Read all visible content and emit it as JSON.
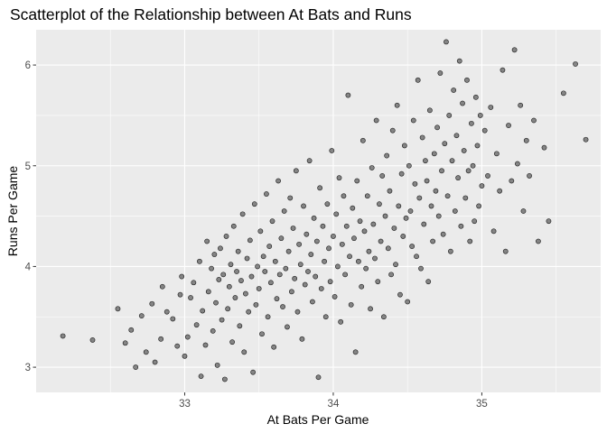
{
  "chart_data": {
    "type": "scatter",
    "title": "Scatterplot of the Relationship between At Bats and Runs",
    "xlabel": "At Bats Per Game",
    "ylabel": "Runs Per Game",
    "xlim": [
      32.0,
      35.8
    ],
    "ylim": [
      2.75,
      6.35
    ],
    "x_ticks": [
      33,
      34,
      35
    ],
    "y_ticks": [
      3,
      4,
      5,
      6
    ],
    "x_tick_labels": [
      "33",
      "34",
      "35"
    ],
    "y_tick_labels": [
      "3",
      "4",
      "5",
      "6"
    ],
    "grid": true,
    "background": "#ebebeb",
    "point_color": "#595959",
    "point_stroke": "#000000",
    "point_alpha": 0.7,
    "points": [
      [
        32.18,
        3.31
      ],
      [
        32.38,
        3.27
      ],
      [
        32.55,
        3.58
      ],
      [
        32.6,
        3.24
      ],
      [
        32.64,
        3.37
      ],
      [
        32.67,
        3.0
      ],
      [
        32.71,
        3.51
      ],
      [
        32.74,
        3.15
      ],
      [
        32.78,
        3.63
      ],
      [
        32.8,
        3.05
      ],
      [
        32.84,
        3.28
      ],
      [
        32.85,
        3.8
      ],
      [
        32.88,
        3.55
      ],
      [
        32.92,
        3.48
      ],
      [
        32.95,
        3.21
      ],
      [
        32.97,
        3.72
      ],
      [
        32.98,
        3.9
      ],
      [
        33.0,
        3.11
      ],
      [
        33.02,
        3.3
      ],
      [
        33.04,
        3.69
      ],
      [
        33.06,
        3.84
      ],
      [
        33.08,
        3.42
      ],
      [
        33.1,
        4.05
      ],
      [
        33.11,
        2.91
      ],
      [
        33.12,
        3.56
      ],
      [
        33.14,
        3.22
      ],
      [
        33.15,
        4.25
      ],
      [
        33.16,
        3.75
      ],
      [
        33.18,
        3.98
      ],
      [
        33.19,
        3.36
      ],
      [
        33.2,
        4.12
      ],
      [
        33.21,
        3.64
      ],
      [
        33.22,
        3.02
      ],
      [
        33.23,
        3.87
      ],
      [
        33.24,
        4.18
      ],
      [
        33.25,
        3.47
      ],
      [
        33.26,
        3.92
      ],
      [
        33.27,
        2.88
      ],
      [
        33.28,
        4.3
      ],
      [
        33.29,
        3.58
      ],
      [
        33.3,
        3.8
      ],
      [
        33.31,
        4.02
      ],
      [
        33.32,
        3.25
      ],
      [
        33.33,
        4.4
      ],
      [
        33.34,
        3.69
      ],
      [
        33.35,
        3.95
      ],
      [
        33.36,
        4.15
      ],
      [
        33.37,
        3.41
      ],
      [
        33.38,
        3.86
      ],
      [
        33.39,
        4.52
      ],
      [
        33.4,
        3.15
      ],
      [
        33.41,
        3.73
      ],
      [
        33.42,
        4.08
      ],
      [
        33.43,
        3.55
      ],
      [
        33.44,
        4.26
      ],
      [
        33.45,
        3.9
      ],
      [
        33.46,
        2.95
      ],
      [
        33.47,
        4.62
      ],
      [
        33.48,
        3.62
      ],
      [
        33.49,
        4.0
      ],
      [
        33.5,
        3.78
      ],
      [
        33.51,
        4.35
      ],
      [
        33.52,
        3.33
      ],
      [
        33.53,
        4.1
      ],
      [
        33.54,
        3.95
      ],
      [
        33.55,
        4.72
      ],
      [
        33.56,
        3.5
      ],
      [
        33.57,
        4.2
      ],
      [
        33.58,
        3.84
      ],
      [
        33.59,
        4.45
      ],
      [
        33.6,
        3.2
      ],
      [
        33.61,
        4.05
      ],
      [
        33.62,
        3.68
      ],
      [
        33.63,
        4.85
      ],
      [
        33.64,
        3.92
      ],
      [
        33.65,
        4.28
      ],
      [
        33.66,
        3.6
      ],
      [
        33.67,
        4.55
      ],
      [
        33.68,
        3.98
      ],
      [
        33.69,
        3.4
      ],
      [
        33.7,
        4.15
      ],
      [
        33.71,
        4.68
      ],
      [
        33.72,
        3.75
      ],
      [
        33.73,
        4.38
      ],
      [
        33.74,
        3.88
      ],
      [
        33.75,
        4.95
      ],
      [
        33.76,
        3.55
      ],
      [
        33.77,
        4.22
      ],
      [
        33.78,
        4.02
      ],
      [
        33.79,
        3.28
      ],
      [
        33.8,
        4.6
      ],
      [
        33.81,
        3.82
      ],
      [
        33.82,
        4.32
      ],
      [
        33.83,
        3.95
      ],
      [
        33.84,
        5.05
      ],
      [
        33.85,
        4.12
      ],
      [
        33.86,
        3.65
      ],
      [
        33.87,
        4.48
      ],
      [
        33.88,
        3.9
      ],
      [
        33.89,
        4.25
      ],
      [
        33.9,
        2.9
      ],
      [
        33.91,
        4.78
      ],
      [
        33.92,
        3.78
      ],
      [
        33.93,
        4.4
      ],
      [
        33.94,
        4.05
      ],
      [
        33.95,
        3.5
      ],
      [
        33.96,
        4.62
      ],
      [
        33.97,
        4.18
      ],
      [
        33.98,
        3.85
      ],
      [
        33.99,
        5.15
      ],
      [
        34.0,
        4.3
      ],
      [
        34.01,
        3.7
      ],
      [
        34.02,
        4.52
      ],
      [
        34.03,
        4.0
      ],
      [
        34.04,
        4.88
      ],
      [
        34.05,
        3.45
      ],
      [
        34.06,
        4.22
      ],
      [
        34.07,
        4.7
      ],
      [
        34.08,
        3.92
      ],
      [
        34.09,
        4.4
      ],
      [
        34.1,
        5.7
      ],
      [
        34.11,
        4.1
      ],
      [
        34.12,
        3.62
      ],
      [
        34.13,
        4.58
      ],
      [
        34.14,
        4.28
      ],
      [
        34.15,
        3.15
      ],
      [
        34.16,
        4.85
      ],
      [
        34.17,
        4.05
      ],
      [
        34.18,
        4.45
      ],
      [
        34.19,
        3.8
      ],
      [
        34.2,
        5.25
      ],
      [
        34.21,
        4.35
      ],
      [
        34.22,
        3.98
      ],
      [
        34.23,
        4.7
      ],
      [
        34.24,
        4.15
      ],
      [
        34.25,
        3.58
      ],
      [
        34.26,
        4.98
      ],
      [
        34.27,
        4.42
      ],
      [
        34.28,
        4.08
      ],
      [
        34.29,
        5.45
      ],
      [
        34.3,
        3.85
      ],
      [
        34.31,
        4.62
      ],
      [
        34.32,
        4.25
      ],
      [
        34.33,
        4.9
      ],
      [
        34.34,
        3.5
      ],
      [
        34.35,
        4.5
      ],
      [
        34.36,
        5.1
      ],
      [
        34.37,
        4.18
      ],
      [
        34.38,
        4.75
      ],
      [
        34.39,
        3.92
      ],
      [
        34.4,
        5.35
      ],
      [
        34.41,
        4.38
      ],
      [
        34.42,
        4.02
      ],
      [
        34.43,
        5.6
      ],
      [
        34.44,
        4.6
      ],
      [
        34.45,
        3.72
      ],
      [
        34.46,
        4.92
      ],
      [
        34.47,
        4.3
      ],
      [
        34.48,
        5.2
      ],
      [
        34.49,
        4.48
      ],
      [
        34.5,
        3.65
      ],
      [
        34.51,
        5.0
      ],
      [
        34.52,
        4.55
      ],
      [
        34.53,
        4.2
      ],
      [
        34.54,
        5.45
      ],
      [
        34.55,
        4.82
      ],
      [
        34.56,
        4.1
      ],
      [
        34.57,
        5.85
      ],
      [
        34.58,
        4.68
      ],
      [
        34.59,
        3.98
      ],
      [
        34.6,
        5.28
      ],
      [
        34.61,
        4.42
      ],
      [
        34.62,
        5.05
      ],
      [
        34.63,
        4.85
      ],
      [
        34.64,
        3.85
      ],
      [
        34.65,
        5.55
      ],
      [
        34.66,
        4.6
      ],
      [
        34.67,
        4.25
      ],
      [
        34.68,
        5.12
      ],
      [
        34.69,
        4.75
      ],
      [
        34.7,
        5.38
      ],
      [
        34.71,
        4.5
      ],
      [
        34.72,
        5.92
      ],
      [
        34.73,
        4.95
      ],
      [
        34.74,
        4.32
      ],
      [
        34.75,
        5.22
      ],
      [
        34.76,
        6.23
      ],
      [
        34.77,
        4.7
      ],
      [
        34.78,
        5.5
      ],
      [
        34.79,
        4.15
      ],
      [
        34.8,
        5.05
      ],
      [
        34.81,
        5.75
      ],
      [
        34.82,
        4.55
      ],
      [
        34.83,
        5.3
      ],
      [
        34.84,
        4.88
      ],
      [
        34.85,
        6.04
      ],
      [
        34.86,
        4.4
      ],
      [
        34.87,
        5.62
      ],
      [
        34.88,
        5.15
      ],
      [
        34.89,
        4.68
      ],
      [
        34.9,
        5.85
      ],
      [
        34.91,
        4.95
      ],
      [
        34.92,
        4.25
      ],
      [
        34.93,
        5.42
      ],
      [
        34.94,
        5.0
      ],
      [
        34.95,
        4.45
      ],
      [
        34.96,
        5.68
      ],
      [
        34.97,
        5.2
      ],
      [
        34.98,
        4.6
      ],
      [
        34.99,
        5.5
      ],
      [
        35.0,
        4.8
      ],
      [
        35.02,
        5.35
      ],
      [
        35.04,
        4.9
      ],
      [
        35.06,
        5.58
      ],
      [
        35.08,
        4.35
      ],
      [
        35.1,
        5.12
      ],
      [
        35.12,
        4.75
      ],
      [
        35.14,
        5.95
      ],
      [
        35.16,
        4.15
      ],
      [
        35.18,
        5.4
      ],
      [
        35.2,
        4.85
      ],
      [
        35.22,
        6.15
      ],
      [
        35.24,
        5.02
      ],
      [
        35.26,
        5.6
      ],
      [
        35.28,
        4.55
      ],
      [
        35.3,
        5.25
      ],
      [
        35.32,
        4.9
      ],
      [
        35.35,
        5.45
      ],
      [
        35.38,
        4.25
      ],
      [
        35.42,
        5.18
      ],
      [
        35.45,
        4.45
      ],
      [
        35.55,
        5.72
      ],
      [
        35.63,
        6.01
      ],
      [
        35.7,
        5.26
      ]
    ]
  }
}
